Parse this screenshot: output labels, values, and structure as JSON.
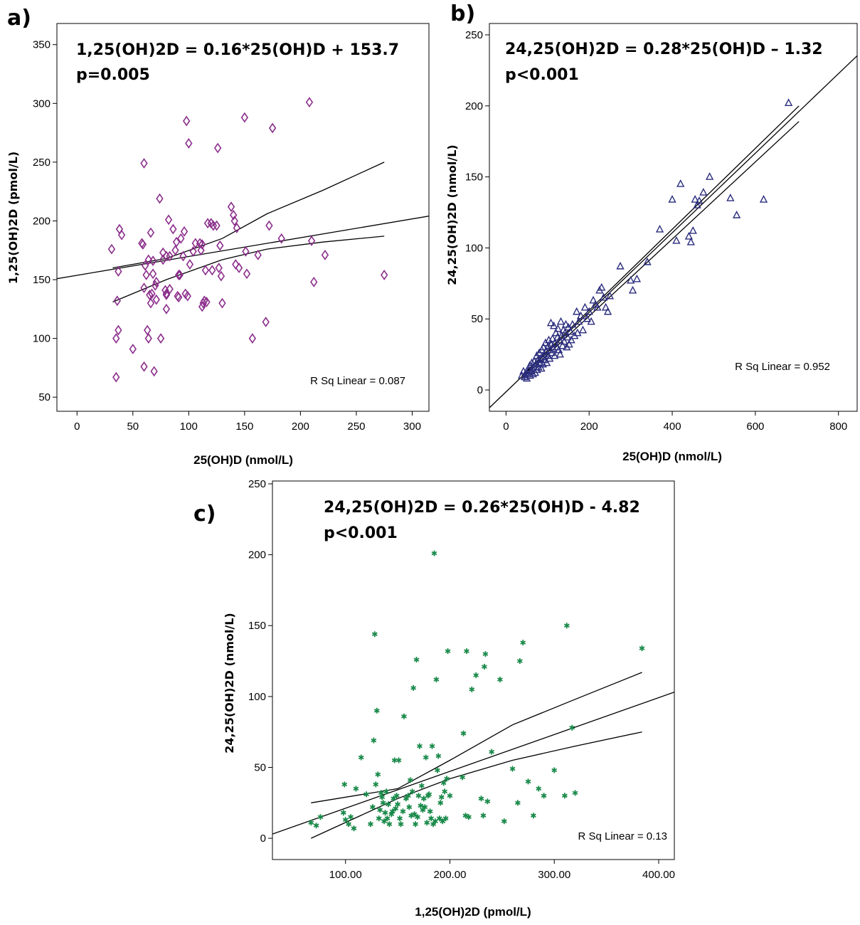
{
  "chart_data": [
    {
      "type": "scatter",
      "panel": "a)",
      "equation": "1,25(OH)2D = 0.16*25(OH)D + 153.7",
      "p_value": "p=0.005",
      "r_sq": "R Sq Linear = 0.087",
      "xlabel": "25(OH)D (nmol/L)",
      "ylabel": "1,25(OH)2D (pmol/L)",
      "xticks": [
        0,
        50,
        100,
        150,
        200,
        250,
        300
      ],
      "yticks": [
        50,
        100,
        150,
        200,
        250,
        300,
        350
      ],
      "xlim": [
        -18,
        315
      ],
      "ylim": [
        38,
        368
      ],
      "marker": "diamond",
      "color": "#8B2E8B",
      "fit": {
        "slope": 0.16,
        "intercept": 153.7
      },
      "ci": {
        "x_range": [
          32,
          275
        ],
        "upper": [
          [
            32,
            160
          ],
          [
            80,
            168
          ],
          [
            130,
            185
          ],
          [
            170,
            206
          ],
          [
            220,
            226
          ],
          [
            275,
            250
          ]
        ],
        "lower": [
          [
            32,
            131
          ],
          [
            80,
            150
          ],
          [
            130,
            167
          ],
          [
            170,
            176
          ],
          [
            220,
            182
          ],
          [
            275,
            187
          ]
        ]
      },
      "points": [
        [
          31,
          176
        ],
        [
          35,
          67
        ],
        [
          35,
          100
        ],
        [
          36,
          132
        ],
        [
          37,
          107
        ],
        [
          37,
          157
        ],
        [
          38,
          193
        ],
        [
          40,
          188
        ],
        [
          50,
          91
        ],
        [
          58,
          181
        ],
        [
          59,
          180
        ],
        [
          60,
          143
        ],
        [
          60,
          76
        ],
        [
          60,
          249
        ],
        [
          61,
          162
        ],
        [
          62,
          154
        ],
        [
          63,
          107
        ],
        [
          64,
          100
        ],
        [
          64,
          167
        ],
        [
          65,
          137
        ],
        [
          66,
          190
        ],
        [
          66,
          130
        ],
        [
          67,
          138
        ],
        [
          68,
          155
        ],
        [
          68,
          166
        ],
        [
          69,
          72
        ],
        [
          70,
          145
        ],
        [
          71,
          148
        ],
        [
          71,
          133
        ],
        [
          74,
          219
        ],
        [
          75,
          100
        ],
        [
          77,
          173
        ],
        [
          77,
          167
        ],
        [
          79,
          141
        ],
        [
          80,
          125
        ],
        [
          80,
          170
        ],
        [
          80,
          137
        ],
        [
          80,
          138
        ],
        [
          82,
          201
        ],
        [
          83,
          170
        ],
        [
          83,
          142
        ],
        [
          86,
          193
        ],
        [
          88,
          175
        ],
        [
          89,
          182
        ],
        [
          90,
          136
        ],
        [
          91,
          135
        ],
        [
          91,
          154
        ],
        [
          92,
          154
        ],
        [
          93,
          185
        ],
        [
          95,
          170
        ],
        [
          96,
          191
        ],
        [
          97,
          138
        ],
        [
          98,
          285
        ],
        [
          99,
          136
        ],
        [
          100,
          266
        ],
        [
          101,
          163
        ],
        [
          104,
          174
        ],
        [
          106,
          181
        ],
        [
          110,
          181
        ],
        [
          111,
          175
        ],
        [
          112,
          180
        ],
        [
          112,
          127
        ],
        [
          113,
          130
        ],
        [
          114,
          132
        ],
        [
          115,
          158
        ],
        [
          116,
          131
        ],
        [
          117,
          198
        ],
        [
          120,
          198
        ],
        [
          121,
          158
        ],
        [
          122,
          196
        ],
        [
          125,
          196
        ],
        [
          126,
          262
        ],
        [
          127,
          160
        ],
        [
          128,
          179
        ],
        [
          129,
          153
        ],
        [
          130,
          130
        ],
        [
          138,
          212
        ],
        [
          140,
          205
        ],
        [
          141,
          200
        ],
        [
          142,
          163
        ],
        [
          143,
          194
        ],
        [
          145,
          160
        ],
        [
          150,
          288
        ],
        [
          151,
          174
        ],
        [
          152,
          155
        ],
        [
          157,
          100
        ],
        [
          162,
          171
        ],
        [
          169,
          114
        ],
        [
          172,
          196
        ],
        [
          175,
          279
        ],
        [
          183,
          185
        ],
        [
          208,
          301
        ],
        [
          210,
          183
        ],
        [
          212,
          148
        ],
        [
          222,
          171
        ],
        [
          275,
          154
        ]
      ]
    },
    {
      "type": "scatter",
      "panel": "b)",
      "equation": "24,25(OH)2D = 0.28*25(OH)D – 1.32",
      "p_value": "p<0.001",
      "r_sq": "R Sq Linear = 0.952",
      "xlabel": "25(OH)D (nmol/L)",
      "ylabel": "24,25(OH)2D (nmol/L)",
      "xticks": [
        0,
        200,
        400,
        600,
        800
      ],
      "yticks": [
        0,
        50,
        100,
        150,
        200,
        250
      ],
      "xlim": [
        -40,
        845
      ],
      "ylim": [
        -15,
        258
      ],
      "marker": "triangle",
      "color": "#2B2D7E",
      "fit": {
        "slope": 0.28,
        "intercept": -1.32
      },
      "ci": {
        "x_range": [
          38,
          705
        ],
        "upper": [
          [
            38,
            10
          ],
          [
            705,
            200
          ]
        ],
        "lower": [
          [
            38,
            8
          ],
          [
            705,
            189
          ]
        ]
      },
      "points": [
        [
          38,
          10
        ],
        [
          42,
          13
        ],
        [
          45,
          9
        ],
        [
          48,
          12
        ],
        [
          50,
          8
        ],
        [
          52,
          11
        ],
        [
          55,
          14
        ],
        [
          57,
          17
        ],
        [
          58,
          10
        ],
        [
          60,
          13
        ],
        [
          62,
          19
        ],
        [
          64,
          15
        ],
        [
          65,
          11
        ],
        [
          67,
          16
        ],
        [
          68,
          20
        ],
        [
          70,
          12
        ],
        [
          72,
          18
        ],
        [
          74,
          24
        ],
        [
          75,
          14
        ],
        [
          77,
          21
        ],
        [
          78,
          16
        ],
        [
          80,
          26
        ],
        [
          82,
          19
        ],
        [
          83,
          22
        ],
        [
          85,
          15
        ],
        [
          86,
          28
        ],
        [
          88,
          23
        ],
        [
          89,
          18
        ],
        [
          90,
          30
        ],
        [
          92,
          25
        ],
        [
          94,
          21
        ],
        [
          95,
          33
        ],
        [
          97,
          27
        ],
        [
          98,
          19
        ],
        [
          100,
          24
        ],
        [
          102,
          31
        ],
        [
          103,
          35
        ],
        [
          105,
          22
        ],
        [
          106,
          28
        ],
        [
          108,
          47
        ],
        [
          109,
          32
        ],
        [
          110,
          26
        ],
        [
          112,
          36
        ],
        [
          114,
          29
        ],
        [
          115,
          45
        ],
        [
          117,
          24
        ],
        [
          118,
          33
        ],
        [
          120,
          40
        ],
        [
          122,
          30
        ],
        [
          124,
          37
        ],
        [
          125,
          43
        ],
        [
          127,
          28
        ],
        [
          129,
          35
        ],
        [
          130,
          25
        ],
        [
          132,
          48
        ],
        [
          134,
          38
        ],
        [
          136,
          31
        ],
        [
          138,
          42
        ],
        [
          140,
          34
        ],
        [
          142,
          40
        ],
        [
          144,
          46
        ],
        [
          146,
          30
        ],
        [
          148,
          37
        ],
        [
          150,
          44
        ],
        [
          152,
          32
        ],
        [
          155,
          41
        ],
        [
          157,
          35
        ],
        [
          160,
          46
        ],
        [
          165,
          38
        ],
        [
          170,
          55
        ],
        [
          172,
          40
        ],
        [
          175,
          48
        ],
        [
          180,
          52
        ],
        [
          185,
          42
        ],
        [
          190,
          58
        ],
        [
          195,
          50
        ],
        [
          200,
          55
        ],
        [
          205,
          48
        ],
        [
          210,
          63
        ],
        [
          215,
          60
        ],
        [
          220,
          58
        ],
        [
          225,
          70
        ],
        [
          230,
          72
        ],
        [
          235,
          65
        ],
        [
          240,
          58
        ],
        [
          245,
          55
        ],
        [
          250,
          66
        ],
        [
          275,
          87
        ],
        [
          300,
          77
        ],
        [
          305,
          70
        ],
        [
          315,
          78
        ],
        [
          340,
          90
        ],
        [
          370,
          113
        ],
        [
          400,
          134
        ],
        [
          410,
          105
        ],
        [
          420,
          145
        ],
        [
          440,
          108
        ],
        [
          445,
          104
        ],
        [
          450,
          112
        ],
        [
          455,
          134
        ],
        [
          460,
          130
        ],
        [
          465,
          133
        ],
        [
          475,
          139
        ],
        [
          490,
          150
        ],
        [
          540,
          135
        ],
        [
          555,
          123
        ],
        [
          620,
          134
        ],
        [
          680,
          202
        ]
      ]
    },
    {
      "type": "scatter",
      "panel": "c)",
      "equation": "24,25(OH)2D = 0.26*25(OH)D - 4.82",
      "p_value": "p<0.001",
      "r_sq": "R Sq Linear = 0.13",
      "xlabel": "1,25(OH)2D (pmol/L)",
      "ylabel": "24,25(OH)2D (nmol/L)",
      "xticks": [
        100,
        200,
        300,
        400
      ],
      "xtick_labels": [
        "100.00",
        "200.00",
        "300.00",
        "400.00"
      ],
      "yticks": [
        0,
        50,
        100,
        150,
        200,
        250
      ],
      "ytick_labels": [
        "0",
        "50",
        "100",
        "150",
        "200",
        "250"
      ],
      "xlim": [
        30,
        415
      ],
      "ylim": [
        -15,
        252
      ],
      "marker": "star",
      "color": "#1A8A4A",
      "fit": {
        "slope": 0.26,
        "intercept": -4.82
      },
      "ci": {
        "x_range": [
          67,
          384
        ],
        "upper": [
          [
            67,
            25
          ],
          [
            150,
            35
          ],
          [
            200,
            55
          ],
          [
            260,
            80
          ],
          [
            320,
            98
          ],
          [
            384,
            117
          ]
        ],
        "lower": [
          [
            67,
            0
          ],
          [
            150,
            28
          ],
          [
            200,
            42
          ],
          [
            260,
            55
          ],
          [
            320,
            65
          ],
          [
            384,
            75
          ]
        ]
      },
      "points": [
        [
          67,
          11
        ],
        [
          72,
          9
        ],
        [
          76,
          15
        ],
        [
          98,
          18
        ],
        [
          99,
          38
        ],
        [
          100,
          13
        ],
        [
          103,
          10
        ],
        [
          105,
          15
        ],
        [
          108,
          7
        ],
        [
          110,
          35
        ],
        [
          115,
          57
        ],
        [
          120,
          31
        ],
        [
          124,
          10
        ],
        [
          126,
          22
        ],
        [
          127,
          69
        ],
        [
          128,
          144
        ],
        [
          129,
          38
        ],
        [
          130,
          90
        ],
        [
          131,
          45
        ],
        [
          132,
          14
        ],
        [
          133,
          20
        ],
        [
          134,
          32
        ],
        [
          135,
          29
        ],
        [
          136,
          25
        ],
        [
          137,
          12
        ],
        [
          138,
          18
        ],
        [
          139,
          33
        ],
        [
          140,
          14
        ],
        [
          141,
          24
        ],
        [
          142,
          10
        ],
        [
          144,
          17
        ],
        [
          145,
          19
        ],
        [
          146,
          28
        ],
        [
          147,
          55
        ],
        [
          148,
          21
        ],
        [
          149,
          30
        ],
        [
          150,
          24
        ],
        [
          151,
          55
        ],
        [
          152,
          14
        ],
        [
          153,
          10
        ],
        [
          155,
          19
        ],
        [
          156,
          86
        ],
        [
          158,
          28
        ],
        [
          160,
          30
        ],
        [
          161,
          22
        ],
        [
          162,
          41
        ],
        [
          163,
          16
        ],
        [
          164,
          33
        ],
        [
          165,
          106
        ],
        [
          166,
          17
        ],
        [
          167,
          10
        ],
        [
          168,
          126
        ],
        [
          169,
          15
        ],
        [
          170,
          30
        ],
        [
          171,
          65
        ],
        [
          172,
          23
        ],
        [
          173,
          37
        ],
        [
          174,
          20
        ],
        [
          175,
          28
        ],
        [
          176,
          22
        ],
        [
          177,
          57
        ],
        [
          178,
          11
        ],
        [
          179,
          30
        ],
        [
          180,
          31
        ],
        [
          181,
          19
        ],
        [
          182,
          14
        ],
        [
          183,
          65
        ],
        [
          184,
          10
        ],
        [
          185,
          201
        ],
        [
          186,
          12
        ],
        [
          187,
          112
        ],
        [
          188,
          48
        ],
        [
          189,
          58
        ],
        [
          190,
          14
        ],
        [
          191,
          25
        ],
        [
          192,
          29
        ],
        [
          193,
          12
        ],
        [
          194,
          39
        ],
        [
          195,
          33
        ],
        [
          196,
          14
        ],
        [
          197,
          42
        ],
        [
          198,
          132
        ],
        [
          200,
          30
        ],
        [
          212,
          43
        ],
        [
          213,
          74
        ],
        [
          215,
          16
        ],
        [
          216,
          132
        ],
        [
          218,
          15
        ],
        [
          221,
          105
        ],
        [
          225,
          115
        ],
        [
          230,
          28
        ],
        [
          232,
          16
        ],
        [
          233,
          121
        ],
        [
          234,
          130
        ],
        [
          236,
          26
        ],
        [
          240,
          61
        ],
        [
          248,
          112
        ],
        [
          252,
          12
        ],
        [
          260,
          49
        ],
        [
          265,
          25
        ],
        [
          267,
          125
        ],
        [
          270,
          138
        ],
        [
          275,
          40
        ],
        [
          280,
          16
        ],
        [
          285,
          35
        ],
        [
          290,
          30
        ],
        [
          300,
          48
        ],
        [
          310,
          30
        ],
        [
          312,
          150
        ],
        [
          317,
          78
        ],
        [
          320,
          32
        ],
        [
          384,
          134
        ]
      ]
    }
  ]
}
